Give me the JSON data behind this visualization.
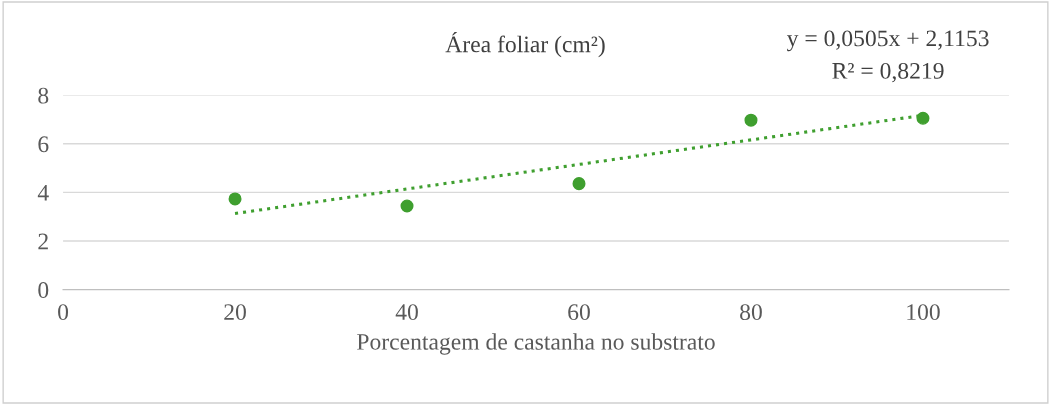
{
  "chart_data": {
    "type": "scatter",
    "title": "Área foliar (cm²)",
    "xlabel": "Porcentagem de castanha no substrato",
    "x": [
      20,
      40,
      60,
      80,
      100
    ],
    "series": [
      {
        "color": "#3f9f2f",
        "values": [
          3.73,
          3.44,
          4.36,
          6.97,
          7.05
        ],
        "marker": "circle"
      },
      {
        "type": "line",
        "color": "#3f9f2f",
        "x": [
          20,
          100
        ],
        "values": [
          3.13,
          7.17
        ],
        "line_style": "dotted",
        "marker": "none"
      }
    ],
    "xlim": [
      0,
      110
    ],
    "xticks": [
      0,
      20,
      40,
      60,
      80,
      100
    ],
    "ylim": [
      0,
      8
    ],
    "yticks": [
      0,
      2,
      4,
      6,
      8
    ],
    "grid": "y",
    "legend": false,
    "annotations": [
      "y = 0,0505x + 2,1153",
      "R² = 0,8219"
    ]
  }
}
